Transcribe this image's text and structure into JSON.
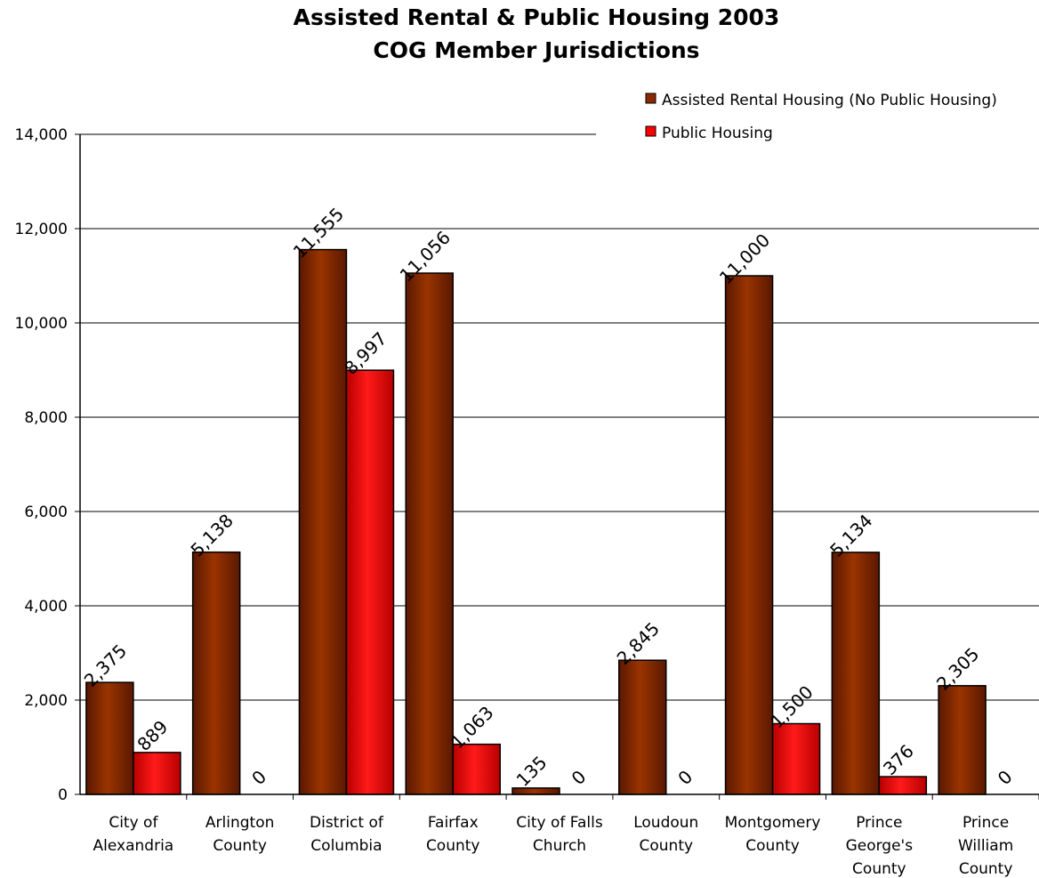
{
  "chart_data": {
    "type": "bar",
    "title": "Assisted Rental & Public Housing 2003",
    "subtitle": "COG Member Jurisdictions",
    "xlabel": "",
    "ylabel": "",
    "ylim": [
      0,
      14000
    ],
    "yticks": [
      0,
      2000,
      4000,
      6000,
      8000,
      10000,
      12000,
      14000
    ],
    "ytick_labels": [
      "0",
      "2,000",
      "4,000",
      "6,000",
      "8,000",
      "10,000",
      "12,000",
      "14,000"
    ],
    "grid": true,
    "legend_position": "top-right",
    "categories": [
      [
        "City of",
        "Alexandria"
      ],
      [
        "Arlington",
        "County"
      ],
      [
        "District of",
        "Columbia"
      ],
      [
        "Fairfax",
        "County"
      ],
      [
        "City of Falls",
        "Church"
      ],
      [
        "Loudoun",
        "County"
      ],
      [
        "Montgomery",
        "County"
      ],
      [
        "Prince",
        "George's",
        "County"
      ],
      [
        "Prince",
        "William",
        "County"
      ]
    ],
    "series": [
      {
        "name": "Assisted Rental Housing (No Public Housing)",
        "color": "#8B2A00",
        "values": [
          2375,
          5138,
          11555,
          11056,
          135,
          2845,
          11000,
          5134,
          2305
        ],
        "labels": [
          "2,375",
          "5,138",
          "11,555",
          "11,056",
          "135",
          "2,845",
          "11,000",
          "5,134",
          "2,305"
        ]
      },
      {
        "name": "Public Housing",
        "color": "#FF0000",
        "values": [
          889,
          0,
          8997,
          1063,
          0,
          0,
          1500,
          376,
          0
        ],
        "labels": [
          "889",
          "0",
          "8,997",
          "1,063",
          "0",
          "0",
          "1,500",
          "376",
          "0"
        ]
      }
    ]
  }
}
